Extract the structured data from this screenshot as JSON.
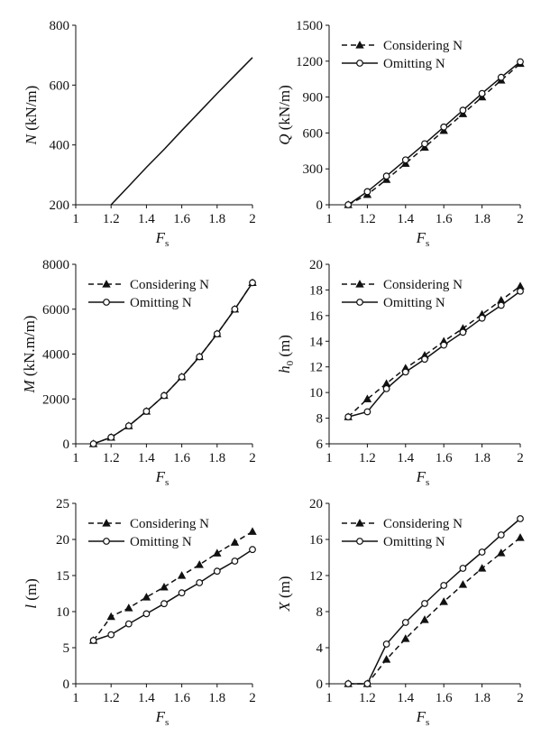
{
  "figure": {
    "description_label": ""
  },
  "chart_data": [
    {
      "type": "line",
      "panel": "N",
      "ylabel_main": "N",
      "ylabel_unit": " (kN/m)",
      "ylabel_sub": "",
      "xlabel_main": "F",
      "xlabel_sub": "s",
      "xlim": [
        1,
        2
      ],
      "ylim": [
        200,
        800
      ],
      "xticks": [
        1,
        1.2,
        1.4,
        1.6,
        1.8,
        2
      ],
      "yticks": [
        200,
        400,
        600,
        800
      ],
      "legend": null,
      "series": [
        {
          "name": "",
          "style": "solid",
          "marker": "none",
          "x": [
            1.2,
            1.3,
            1.4,
            1.5,
            1.6,
            1.7,
            1.8,
            1.9,
            2.0
          ],
          "y": [
            200,
            262,
            325,
            385,
            448,
            510,
            572,
            632,
            692
          ]
        }
      ]
    },
    {
      "type": "line",
      "panel": "Q",
      "ylabel_main": "Q",
      "ylabel_unit": " (kN/m)",
      "ylabel_sub": "",
      "xlabel_main": "F",
      "xlabel_sub": "s",
      "xlim": [
        1,
        2
      ],
      "ylim": [
        0,
        1500
      ],
      "xticks": [
        1,
        1.2,
        1.4,
        1.6,
        1.8,
        2
      ],
      "yticks": [
        0,
        300,
        600,
        900,
        1200,
        1500
      ],
      "legend": "top-left",
      "series": [
        {
          "name": "Considering N",
          "style": "dashed",
          "marker": "triangle",
          "x": [
            1.1,
            1.2,
            1.3,
            1.4,
            1.5,
            1.6,
            1.7,
            1.8,
            1.9,
            2.0
          ],
          "y": [
            0,
            85,
            210,
            345,
            480,
            620,
            760,
            900,
            1040,
            1180
          ]
        },
        {
          "name": "Omitting N",
          "style": "solid",
          "marker": "circle",
          "x": [
            1.1,
            1.2,
            1.3,
            1.4,
            1.5,
            1.6,
            1.7,
            1.8,
            1.9,
            2.0
          ],
          "y": [
            0,
            110,
            240,
            375,
            510,
            650,
            790,
            930,
            1065,
            1195
          ]
        }
      ]
    },
    {
      "type": "line",
      "panel": "M",
      "ylabel_main": "M",
      "ylabel_unit": " (kN.m/m)",
      "ylabel_sub": "",
      "xlabel_main": "F",
      "xlabel_sub": "s",
      "xlim": [
        1,
        2
      ],
      "ylim": [
        0,
        8000
      ],
      "xticks": [
        1,
        1.2,
        1.4,
        1.6,
        1.8,
        2
      ],
      "yticks": [
        0,
        2000,
        4000,
        6000,
        8000
      ],
      "legend": "top-left",
      "series": [
        {
          "name": "Considering N",
          "style": "dashed",
          "marker": "triangle",
          "x": [
            1.1,
            1.2,
            1.3,
            1.4,
            1.5,
            1.6,
            1.7,
            1.8,
            1.9,
            2.0
          ],
          "y": [
            0,
            290,
            800,
            1450,
            2150,
            2980,
            3880,
            4900,
            6000,
            7180
          ]
        },
        {
          "name": "Omitting N",
          "style": "solid",
          "marker": "circle",
          "x": [
            1.1,
            1.2,
            1.3,
            1.4,
            1.5,
            1.6,
            1.7,
            1.8,
            1.9,
            2.0
          ],
          "y": [
            0,
            290,
            800,
            1450,
            2150,
            2980,
            3880,
            4900,
            6000,
            7180
          ]
        }
      ]
    },
    {
      "type": "line",
      "panel": "h0",
      "ylabel_main": "h",
      "ylabel_unit": " (m)",
      "ylabel_sub": "0",
      "xlabel_main": "F",
      "xlabel_sub": "s",
      "xlim": [
        1,
        2
      ],
      "ylim": [
        6,
        20
      ],
      "xticks": [
        1,
        1.2,
        1.4,
        1.6,
        1.8,
        2
      ],
      "yticks": [
        6,
        8,
        10,
        12,
        14,
        16,
        18,
        20
      ],
      "legend": "top-left",
      "series": [
        {
          "name": "Considering N",
          "style": "dashed",
          "marker": "triangle",
          "x": [
            1.1,
            1.2,
            1.3,
            1.4,
            1.5,
            1.6,
            1.7,
            1.8,
            1.9,
            2.0
          ],
          "y": [
            8.1,
            9.5,
            10.7,
            11.9,
            12.9,
            14.0,
            15.0,
            16.1,
            17.2,
            18.3
          ]
        },
        {
          "name": "Omitting N",
          "style": "solid",
          "marker": "circle",
          "x": [
            1.1,
            1.2,
            1.3,
            1.4,
            1.5,
            1.6,
            1.7,
            1.8,
            1.9,
            2.0
          ],
          "y": [
            8.1,
            8.5,
            10.3,
            11.6,
            12.6,
            13.7,
            14.7,
            15.8,
            16.8,
            17.9
          ]
        }
      ]
    },
    {
      "type": "line",
      "panel": "l",
      "ylabel_main": "l",
      "ylabel_unit": " (m)",
      "ylabel_sub": "",
      "xlabel_main": "F",
      "xlabel_sub": "s",
      "xlim": [
        1,
        2
      ],
      "ylim": [
        0,
        25
      ],
      "xticks": [
        1,
        1.2,
        1.4,
        1.6,
        1.8,
        2
      ],
      "yticks": [
        0,
        5,
        10,
        15,
        20,
        25
      ],
      "legend": "top-left",
      "series": [
        {
          "name": "Considering N",
          "style": "dashed",
          "marker": "triangle",
          "x": [
            1.1,
            1.2,
            1.3,
            1.4,
            1.5,
            1.6,
            1.7,
            1.8,
            1.9,
            2.0
          ],
          "y": [
            6.0,
            9.3,
            10.5,
            12.0,
            13.4,
            15.0,
            16.5,
            18.1,
            19.6,
            21.1
          ]
        },
        {
          "name": "Omitting N",
          "style": "solid",
          "marker": "circle",
          "x": [
            1.1,
            1.2,
            1.3,
            1.4,
            1.5,
            1.6,
            1.7,
            1.8,
            1.9,
            2.0
          ],
          "y": [
            6.0,
            6.8,
            8.3,
            9.7,
            11.1,
            12.6,
            14.0,
            15.6,
            17.0,
            18.6
          ]
        }
      ]
    },
    {
      "type": "line",
      "panel": "X",
      "ylabel_main": "X",
      "ylabel_unit": " (m)",
      "ylabel_sub": "",
      "xlabel_main": "F",
      "xlabel_sub": "s",
      "xlim": [
        1,
        2
      ],
      "ylim": [
        0,
        20
      ],
      "xticks": [
        1,
        1.2,
        1.4,
        1.6,
        1.8,
        2
      ],
      "yticks": [
        0,
        4,
        8,
        12,
        16,
        20
      ],
      "legend": "top-left",
      "series": [
        {
          "name": "Considering N",
          "style": "dashed",
          "marker": "triangle",
          "x": [
            1.1,
            1.2,
            1.3,
            1.4,
            1.5,
            1.6,
            1.7,
            1.8,
            1.9,
            2.0
          ],
          "y": [
            0,
            0,
            2.7,
            5.0,
            7.1,
            9.1,
            11.0,
            12.8,
            14.5,
            16.2
          ]
        },
        {
          "name": "Omitting N",
          "style": "solid",
          "marker": "circle",
          "x": [
            1.1,
            1.2,
            1.3,
            1.4,
            1.5,
            1.6,
            1.7,
            1.8,
            1.9,
            2.0
          ],
          "y": [
            0,
            0,
            4.4,
            6.8,
            8.9,
            10.9,
            12.8,
            14.6,
            16.5,
            18.3
          ]
        }
      ]
    }
  ]
}
